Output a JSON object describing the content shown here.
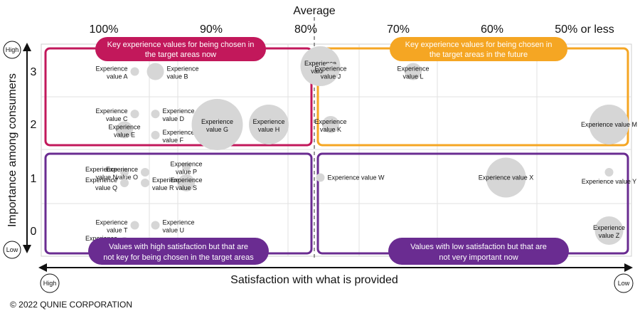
{
  "chart_data": {
    "type": "scatter",
    "title": "",
    "xlabel": "Satisfaction with what is provided",
    "ylabel": "Importance among consumers",
    "x_top_label": "Average",
    "x_ticks": [
      "100%",
      "90%",
      "80%",
      "70%",
      "60%",
      "50% or less"
    ],
    "x_average": "80%",
    "x_end_left": "High",
    "x_end_right": "Low",
    "y_ticks": [
      "0",
      "1",
      "2",
      "3"
    ],
    "y_end_top": "High",
    "y_end_bottom": "Low",
    "points": [
      {
        "label": "Experience value A",
        "x": 97,
        "y": 3.0,
        "size": 1
      },
      {
        "label": "Experience value B",
        "x": 95,
        "y": 3.0,
        "size": 2
      },
      {
        "label": "Experience value C",
        "x": 97,
        "y": 2.2,
        "size": 1
      },
      {
        "label": "Experience value D",
        "x": 95,
        "y": 2.2,
        "size": 1
      },
      {
        "label": "Experience value E",
        "x": 98,
        "y": 1.9,
        "size": 2
      },
      {
        "label": "Experience value F",
        "x": 95,
        "y": 1.8,
        "size": 1
      },
      {
        "label": "Experience value G",
        "x": 89,
        "y": 2.0,
        "size": 5
      },
      {
        "label": "Experience value H",
        "x": 84,
        "y": 2.0,
        "size": 4
      },
      {
        "label": "Experience value I",
        "x": 79,
        "y": 3.1,
        "size": 4
      },
      {
        "label": "Experience value J",
        "x": 78,
        "y": 3.0,
        "size": 2
      },
      {
        "label": "Experience value K",
        "x": 78,
        "y": 2.0,
        "size": 2
      },
      {
        "label": "Experience value L",
        "x": 70,
        "y": 3.0,
        "size": 2
      },
      {
        "label": "Experience value M",
        "x": 51,
        "y": 2.0,
        "size": 4
      },
      {
        "label": "Experience value N",
        "x": 98,
        "y": 1.1,
        "size": 1
      },
      {
        "label": "Experience value O",
        "x": 96,
        "y": 1.1,
        "size": 1
      },
      {
        "label": "Experience value P",
        "x": 92,
        "y": 1.2,
        "size": 1
      },
      {
        "label": "Experience value Q",
        "x": 98,
        "y": 0.9,
        "size": 1
      },
      {
        "label": "Experience value R",
        "x": 96,
        "y": 0.9,
        "size": 1
      },
      {
        "label": "Experience value S",
        "x": 92,
        "y": 0.9,
        "size": 2
      },
      {
        "label": "Experience value T",
        "x": 97,
        "y": 0.1,
        "size": 1
      },
      {
        "label": "Experience value U",
        "x": 95,
        "y": 0.1,
        "size": 1
      },
      {
        "label": "Experience value V",
        "x": 98,
        "y": -0.2,
        "size": 1
      },
      {
        "label": "Experience value W",
        "x": 79,
        "y": 1.0,
        "size": 1
      },
      {
        "label": "Experience value X",
        "x": 61,
        "y": 1.0,
        "size": 4
      },
      {
        "label": "Experience value Y",
        "x": 51,
        "y": 1.1,
        "size": 1
      },
      {
        "label": "Experience value Z",
        "x": 51,
        "y": 0.0,
        "size": 3
      }
    ],
    "regions": [
      {
        "name": "Key experience values for being chosen in the target areas now",
        "color": "#c2185b"
      },
      {
        "name": "Key experience values for being chosen in the target areas in the future",
        "color": "#f5a623"
      },
      {
        "name": "Values with high satisfaction but that are not key for being chosen in the target areas",
        "color": "#6a2c91"
      },
      {
        "name": "Values with low satisfaction but that are not very important now",
        "color": "#6a2c91"
      }
    ]
  },
  "callouts": {
    "now": [
      "Key experience values for being chosen in",
      "the target areas now"
    ],
    "future": [
      "Key experience values for being chosen in",
      "the target areas in the future"
    ],
    "high_sat": [
      "Values with high satisfaction but that are",
      "not key for being chosen in the target areas"
    ],
    "low_sat": [
      "Values with low satisfaction but that are",
      "not very important now"
    ]
  },
  "copyright": "© 2022 QUNIE CORPORATION"
}
